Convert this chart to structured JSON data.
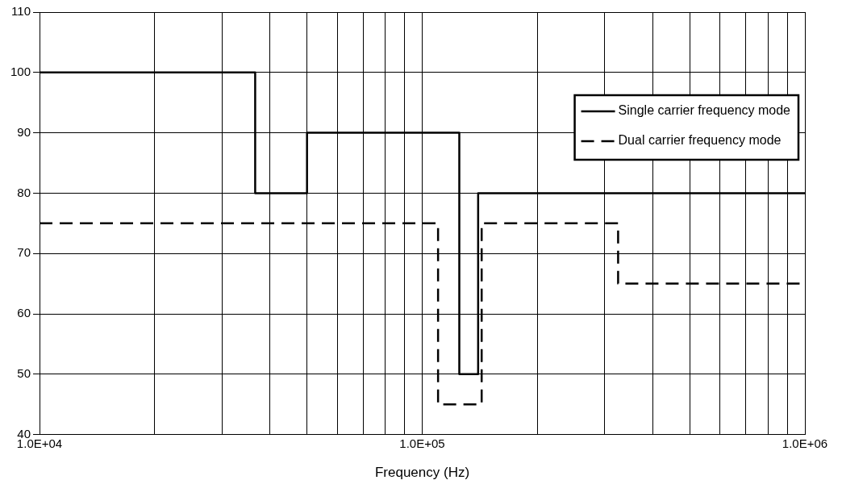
{
  "chart_data": {
    "type": "step",
    "xlabel": "Frequency (Hz)",
    "log": "x",
    "grid": true,
    "legend": "top right",
    "xlim": [
      10000,
      1000000
    ],
    "ylim": [
      40,
      110
    ],
    "xticks": [
      {
        "value": 10000,
        "label": "1.0E+04"
      },
      {
        "value": 20000,
        "label": null
      },
      {
        "value": 30000,
        "label": null
      },
      {
        "value": 40000,
        "label": null
      },
      {
        "value": 50000,
        "label": null
      },
      {
        "value": 60000,
        "label": null
      },
      {
        "value": 70000,
        "label": null
      },
      {
        "value": 80000,
        "label": null
      },
      {
        "value": 90000,
        "label": null
      },
      {
        "value": 100000,
        "label": "1.0E+05"
      },
      {
        "value": 200000,
        "label": null
      },
      {
        "value": 300000,
        "label": null
      },
      {
        "value": 400000,
        "label": null
      },
      {
        "value": 500000,
        "label": null
      },
      {
        "value": 600000,
        "label": null
      },
      {
        "value": 700000,
        "label": null
      },
      {
        "value": 800000,
        "label": null
      },
      {
        "value": 900000,
        "label": null
      },
      {
        "value": 1000000,
        "label": "1.0E+06"
      }
    ],
    "yticks": [
      40,
      50,
      60,
      70,
      80,
      90,
      100,
      110
    ],
    "series": [
      {
        "name": "Single carrier frequency mode",
        "color": "#000000",
        "line_style": "solid",
        "x": [
          10000,
          36600,
          50000,
          125000,
          140000,
          1000000
        ],
        "values": [
          100,
          80,
          90,
          50,
          80,
          80
        ]
      },
      {
        "name": "Dual carrier frequency mode",
        "color": "#000000",
        "line_style": "dashed",
        "x": [
          10000,
          110000,
          143000,
          325000,
          1000000
        ],
        "values": [
          75,
          45,
          75,
          65,
          65
        ]
      }
    ]
  }
}
